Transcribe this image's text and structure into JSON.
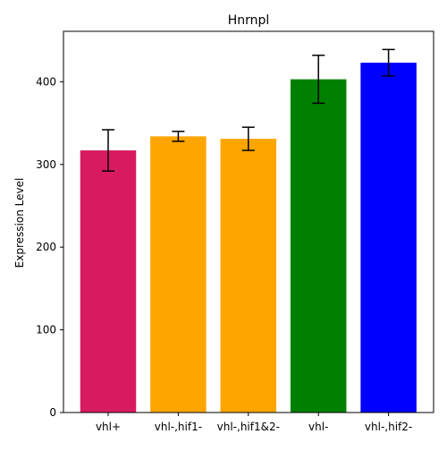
{
  "chart_data": {
    "type": "bar",
    "title": "Hnrnpl",
    "xlabel": "",
    "ylabel": "Expression Level",
    "categories": [
      "vhl+",
      "vhl-,hif1-",
      "vhl-,hif1&2-",
      "vhl-",
      "vhl-,hif2-"
    ],
    "values": [
      317,
      334,
      331,
      403,
      423
    ],
    "errors": [
      25,
      6,
      14,
      29,
      16
    ],
    "colors": [
      "#d81b60",
      "#ffa500",
      "#ffa500",
      "#008000",
      "#0000ff"
    ],
    "ylim": [
      0,
      461
    ],
    "yticks": [
      0,
      100,
      200,
      300,
      400
    ],
    "grid": false,
    "legend": "none"
  }
}
